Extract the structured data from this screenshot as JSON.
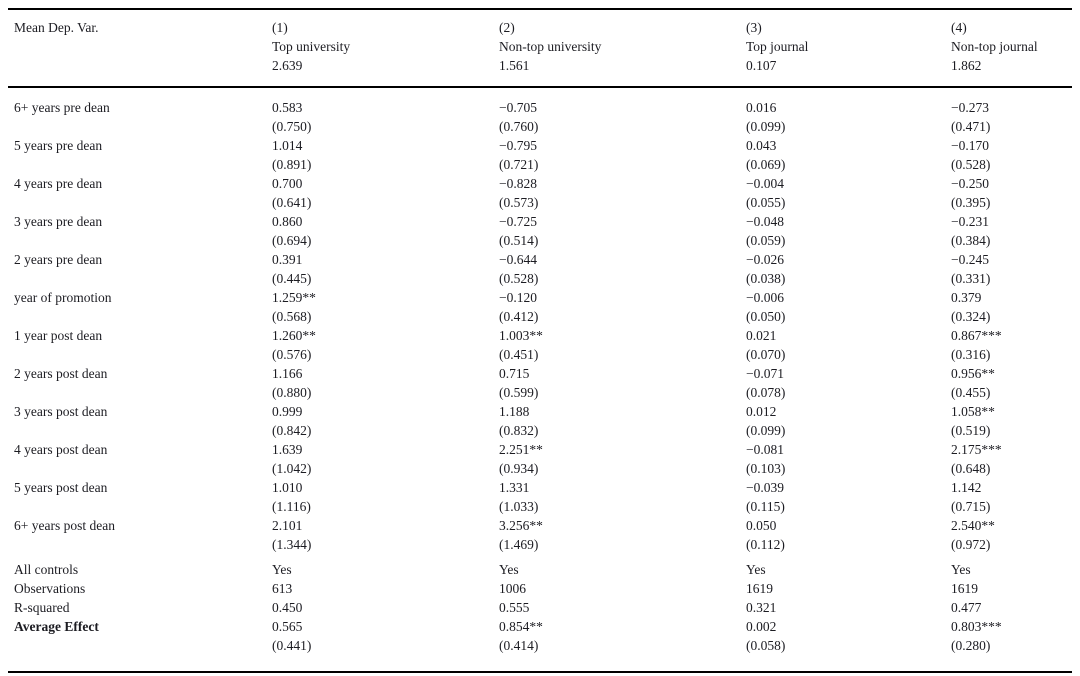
{
  "table": {
    "header": {
      "label": "Mean Dep. Var.",
      "columns": [
        {
          "number": "(1)",
          "name": "Top university",
          "mean": "2.639"
        },
        {
          "number": "(2)",
          "name": "Non-top university",
          "mean": "1.561"
        },
        {
          "number": "(3)",
          "name": "Top journal",
          "mean": "0.107"
        },
        {
          "number": "(4)",
          "name": "Non-top journal",
          "mean": "1.862"
        }
      ]
    },
    "coef_rows": [
      {
        "label": "6+ years pre dean",
        "values": [
          "0.583",
          "−0.705",
          "0.016",
          "−0.273"
        ],
        "se": [
          "(0.750)",
          "(0.760)",
          "(0.099)",
          "(0.471)"
        ]
      },
      {
        "label": "5 years pre dean",
        "values": [
          "1.014",
          "−0.795",
          "0.043",
          "−0.170"
        ],
        "se": [
          "(0.891)",
          "(0.721)",
          "(0.069)",
          "(0.528)"
        ]
      },
      {
        "label": "4 years pre dean",
        "values": [
          "0.700",
          "−0.828",
          "−0.004",
          "−0.250"
        ],
        "se": [
          "(0.641)",
          "(0.573)",
          "(0.055)",
          "(0.395)"
        ]
      },
      {
        "label": "3 years pre dean",
        "values": [
          "0.860",
          "−0.725",
          "−0.048",
          "−0.231"
        ],
        "se": [
          "(0.694)",
          "(0.514)",
          "(0.059)",
          "(0.384)"
        ]
      },
      {
        "label": "2 years pre dean",
        "values": [
          "0.391",
          "−0.644",
          "−0.026",
          "−0.245"
        ],
        "se": [
          "(0.445)",
          "(0.528)",
          "(0.038)",
          "(0.331)"
        ]
      },
      {
        "label": "year of promotion",
        "values": [
          "1.259**",
          "−0.120",
          "−0.006",
          "0.379"
        ],
        "se": [
          "(0.568)",
          "(0.412)",
          "(0.050)",
          "(0.324)"
        ]
      },
      {
        "label": "1 year post dean",
        "values": [
          "1.260**",
          "1.003**",
          "0.021",
          "0.867***"
        ],
        "se": [
          "(0.576)",
          "(0.451)",
          "(0.070)",
          "(0.316)"
        ]
      },
      {
        "label": "2 years post dean",
        "values": [
          "1.166",
          "0.715",
          "−0.071",
          "0.956**"
        ],
        "se": [
          "(0.880)",
          "(0.599)",
          "(0.078)",
          "(0.455)"
        ]
      },
      {
        "label": "3 years post dean",
        "values": [
          "0.999",
          "1.188",
          "0.012",
          "1.058**"
        ],
        "se": [
          "(0.842)",
          "(0.832)",
          "(0.099)",
          "(0.519)"
        ]
      },
      {
        "label": "4 years post dean",
        "values": [
          "1.639",
          "2.251**",
          "−0.081",
          "2.175***"
        ],
        "se": [
          "(1.042)",
          "(0.934)",
          "(0.103)",
          "(0.648)"
        ]
      },
      {
        "label": "5 years post dean",
        "values": [
          "1.010",
          "1.331",
          "−0.039",
          "1.142"
        ],
        "se": [
          "(1.116)",
          "(1.033)",
          "(0.115)",
          "(0.715)"
        ]
      },
      {
        "label": "6+ years post dean",
        "values": [
          "2.101",
          "3.256**",
          "0.050",
          "2.540**"
        ],
        "se": [
          "(1.344)",
          "(1.469)",
          "(0.112)",
          "(0.972)"
        ]
      }
    ],
    "stat_rows": [
      {
        "label": "All controls",
        "values": [
          "Yes",
          "Yes",
          "Yes",
          "Yes"
        ],
        "bold": false
      },
      {
        "label": "Observations",
        "values": [
          "613",
          "1006",
          "1619",
          "1619"
        ],
        "bold": false
      },
      {
        "label": "R-squared",
        "values": [
          "0.450",
          "0.555",
          "0.321",
          "0.477"
        ],
        "bold": false
      },
      {
        "label": "Average Effect",
        "values": [
          "0.565",
          "0.854**",
          "0.002",
          "0.803***"
        ],
        "bold": true,
        "se": [
          "(0.441)",
          "(0.414)",
          "(0.058)",
          "(0.280)"
        ]
      }
    ]
  }
}
